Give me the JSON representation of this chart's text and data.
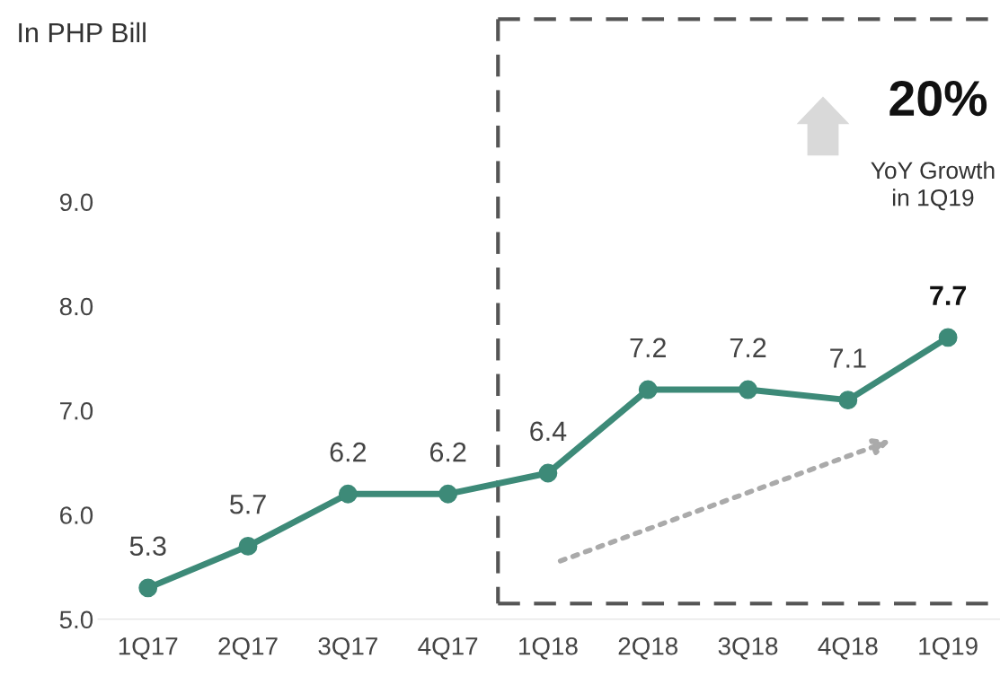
{
  "chart_data": {
    "type": "line",
    "categories": [
      "1Q17",
      "2Q17",
      "3Q17",
      "4Q17",
      "1Q18",
      "2Q18",
      "3Q18",
      "4Q18",
      "1Q19"
    ],
    "series": [
      {
        "color": "#3d8a78",
        "values": [
          5.3,
          5.7,
          6.2,
          6.2,
          6.4,
          7.2,
          7.2,
          7.1,
          7.7
        ]
      }
    ],
    "ylim": [
      5.0,
      9.0
    ],
    "yticks": [
      {
        "value": 5.0,
        "label": "5.0"
      },
      {
        "value": 6.0,
        "label": "6.0"
      },
      {
        "value": 7.0,
        "label": "7.0"
      },
      {
        "value": 8.0,
        "label": "8.0"
      },
      {
        "value": 9.0,
        "label": "9.0"
      }
    ],
    "annotations": [
      "In PHP Bill",
      "20%",
      "YoY Growth\nin 1Q19"
    ],
    "data_labels": true,
    "marker": "circle",
    "line_style": "solid",
    "grid": false,
    "legend": false
  }
}
